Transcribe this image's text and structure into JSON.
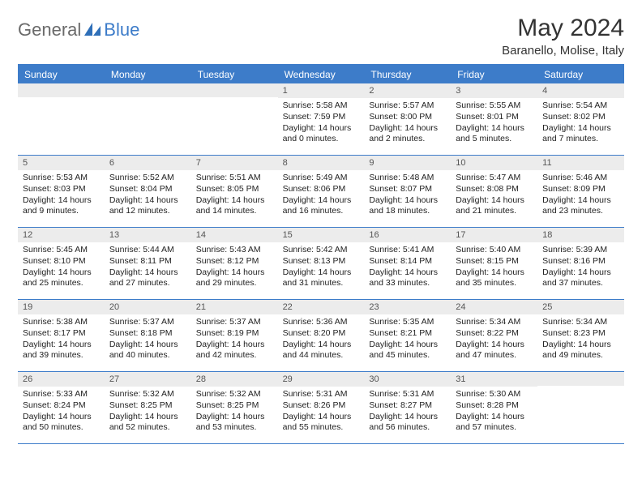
{
  "logo": {
    "part1": "General",
    "part2": "Blue"
  },
  "title": "May 2024",
  "location": "Baranello, Molise, Italy",
  "columns": [
    "Sunday",
    "Monday",
    "Tuesday",
    "Wednesday",
    "Thursday",
    "Friday",
    "Saturday"
  ],
  "colors": {
    "brand_blue": "#3d7cc9",
    "header_gray": "#ececec",
    "text": "#222222",
    "logo_gray": "#6a6a6a"
  },
  "weeks": [
    [
      {
        "day": "",
        "lines": []
      },
      {
        "day": "",
        "lines": []
      },
      {
        "day": "",
        "lines": []
      },
      {
        "day": "1",
        "lines": [
          "Sunrise: 5:58 AM",
          "Sunset: 7:59 PM",
          "Daylight: 14 hours",
          "and 0 minutes."
        ]
      },
      {
        "day": "2",
        "lines": [
          "Sunrise: 5:57 AM",
          "Sunset: 8:00 PM",
          "Daylight: 14 hours",
          "and 2 minutes."
        ]
      },
      {
        "day": "3",
        "lines": [
          "Sunrise: 5:55 AM",
          "Sunset: 8:01 PM",
          "Daylight: 14 hours",
          "and 5 minutes."
        ]
      },
      {
        "day": "4",
        "lines": [
          "Sunrise: 5:54 AM",
          "Sunset: 8:02 PM",
          "Daylight: 14 hours",
          "and 7 minutes."
        ]
      }
    ],
    [
      {
        "day": "5",
        "lines": [
          "Sunrise: 5:53 AM",
          "Sunset: 8:03 PM",
          "Daylight: 14 hours",
          "and 9 minutes."
        ]
      },
      {
        "day": "6",
        "lines": [
          "Sunrise: 5:52 AM",
          "Sunset: 8:04 PM",
          "Daylight: 14 hours",
          "and 12 minutes."
        ]
      },
      {
        "day": "7",
        "lines": [
          "Sunrise: 5:51 AM",
          "Sunset: 8:05 PM",
          "Daylight: 14 hours",
          "and 14 minutes."
        ]
      },
      {
        "day": "8",
        "lines": [
          "Sunrise: 5:49 AM",
          "Sunset: 8:06 PM",
          "Daylight: 14 hours",
          "and 16 minutes."
        ]
      },
      {
        "day": "9",
        "lines": [
          "Sunrise: 5:48 AM",
          "Sunset: 8:07 PM",
          "Daylight: 14 hours",
          "and 18 minutes."
        ]
      },
      {
        "day": "10",
        "lines": [
          "Sunrise: 5:47 AM",
          "Sunset: 8:08 PM",
          "Daylight: 14 hours",
          "and 21 minutes."
        ]
      },
      {
        "day": "11",
        "lines": [
          "Sunrise: 5:46 AM",
          "Sunset: 8:09 PM",
          "Daylight: 14 hours",
          "and 23 minutes."
        ]
      }
    ],
    [
      {
        "day": "12",
        "lines": [
          "Sunrise: 5:45 AM",
          "Sunset: 8:10 PM",
          "Daylight: 14 hours",
          "and 25 minutes."
        ]
      },
      {
        "day": "13",
        "lines": [
          "Sunrise: 5:44 AM",
          "Sunset: 8:11 PM",
          "Daylight: 14 hours",
          "and 27 minutes."
        ]
      },
      {
        "day": "14",
        "lines": [
          "Sunrise: 5:43 AM",
          "Sunset: 8:12 PM",
          "Daylight: 14 hours",
          "and 29 minutes."
        ]
      },
      {
        "day": "15",
        "lines": [
          "Sunrise: 5:42 AM",
          "Sunset: 8:13 PM",
          "Daylight: 14 hours",
          "and 31 minutes."
        ]
      },
      {
        "day": "16",
        "lines": [
          "Sunrise: 5:41 AM",
          "Sunset: 8:14 PM",
          "Daylight: 14 hours",
          "and 33 minutes."
        ]
      },
      {
        "day": "17",
        "lines": [
          "Sunrise: 5:40 AM",
          "Sunset: 8:15 PM",
          "Daylight: 14 hours",
          "and 35 minutes."
        ]
      },
      {
        "day": "18",
        "lines": [
          "Sunrise: 5:39 AM",
          "Sunset: 8:16 PM",
          "Daylight: 14 hours",
          "and 37 minutes."
        ]
      }
    ],
    [
      {
        "day": "19",
        "lines": [
          "Sunrise: 5:38 AM",
          "Sunset: 8:17 PM",
          "Daylight: 14 hours",
          "and 39 minutes."
        ]
      },
      {
        "day": "20",
        "lines": [
          "Sunrise: 5:37 AM",
          "Sunset: 8:18 PM",
          "Daylight: 14 hours",
          "and 40 minutes."
        ]
      },
      {
        "day": "21",
        "lines": [
          "Sunrise: 5:37 AM",
          "Sunset: 8:19 PM",
          "Daylight: 14 hours",
          "and 42 minutes."
        ]
      },
      {
        "day": "22",
        "lines": [
          "Sunrise: 5:36 AM",
          "Sunset: 8:20 PM",
          "Daylight: 14 hours",
          "and 44 minutes."
        ]
      },
      {
        "day": "23",
        "lines": [
          "Sunrise: 5:35 AM",
          "Sunset: 8:21 PM",
          "Daylight: 14 hours",
          "and 45 minutes."
        ]
      },
      {
        "day": "24",
        "lines": [
          "Sunrise: 5:34 AM",
          "Sunset: 8:22 PM",
          "Daylight: 14 hours",
          "and 47 minutes."
        ]
      },
      {
        "day": "25",
        "lines": [
          "Sunrise: 5:34 AM",
          "Sunset: 8:23 PM",
          "Daylight: 14 hours",
          "and 49 minutes."
        ]
      }
    ],
    [
      {
        "day": "26",
        "lines": [
          "Sunrise: 5:33 AM",
          "Sunset: 8:24 PM",
          "Daylight: 14 hours",
          "and 50 minutes."
        ]
      },
      {
        "day": "27",
        "lines": [
          "Sunrise: 5:32 AM",
          "Sunset: 8:25 PM",
          "Daylight: 14 hours",
          "and 52 minutes."
        ]
      },
      {
        "day": "28",
        "lines": [
          "Sunrise: 5:32 AM",
          "Sunset: 8:25 PM",
          "Daylight: 14 hours",
          "and 53 minutes."
        ]
      },
      {
        "day": "29",
        "lines": [
          "Sunrise: 5:31 AM",
          "Sunset: 8:26 PM",
          "Daylight: 14 hours",
          "and 55 minutes."
        ]
      },
      {
        "day": "30",
        "lines": [
          "Sunrise: 5:31 AM",
          "Sunset: 8:27 PM",
          "Daylight: 14 hours",
          "and 56 minutes."
        ]
      },
      {
        "day": "31",
        "lines": [
          "Sunrise: 5:30 AM",
          "Sunset: 8:28 PM",
          "Daylight: 14 hours",
          "and 57 minutes."
        ]
      },
      {
        "day": "",
        "lines": []
      }
    ]
  ]
}
